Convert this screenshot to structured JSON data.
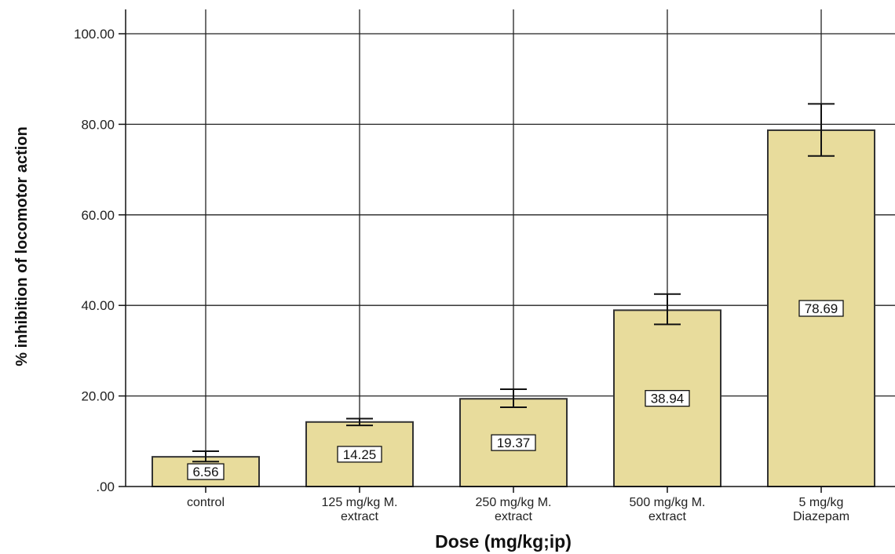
{
  "chart_data": {
    "type": "bar",
    "categories": [
      [
        "control"
      ],
      [
        "125 mg/kg M.",
        "extract"
      ],
      [
        "250 mg/kg M.",
        "extract"
      ],
      [
        "500 mg/kg M.",
        "extract"
      ],
      [
        "5 mg/kg",
        "Diazepam"
      ]
    ],
    "values": [
      6.56,
      14.25,
      19.37,
      38.94,
      78.69
    ],
    "data_labels": [
      "6.56",
      "14.25",
      "19.37",
      "38.94",
      "78.69"
    ],
    "error_bars": [
      {
        "low": 5.5,
        "high": 7.8
      },
      {
        "low": 13.5,
        "high": 15.0
      },
      {
        "low": 17.5,
        "high": 21.5
      },
      {
        "low": 35.8,
        "high": 42.5
      },
      {
        "low": 73.0,
        "high": 84.5
      }
    ],
    "xlabel": "Dose (mg/kg;ip)",
    "ylabel": "% inhibition of locomotor action",
    "ylim": [
      0,
      100
    ],
    "yticks": [
      0,
      20,
      40,
      60,
      80,
      100
    ],
    "ytick_labels": [
      ".00",
      "20.00",
      "40.00",
      "60.00",
      "80.00",
      "100.00"
    ],
    "grid": true,
    "colors": {
      "bar_fill": "#e8dc9c",
      "bar_stroke": "#333333",
      "grid": "#222222"
    }
  }
}
